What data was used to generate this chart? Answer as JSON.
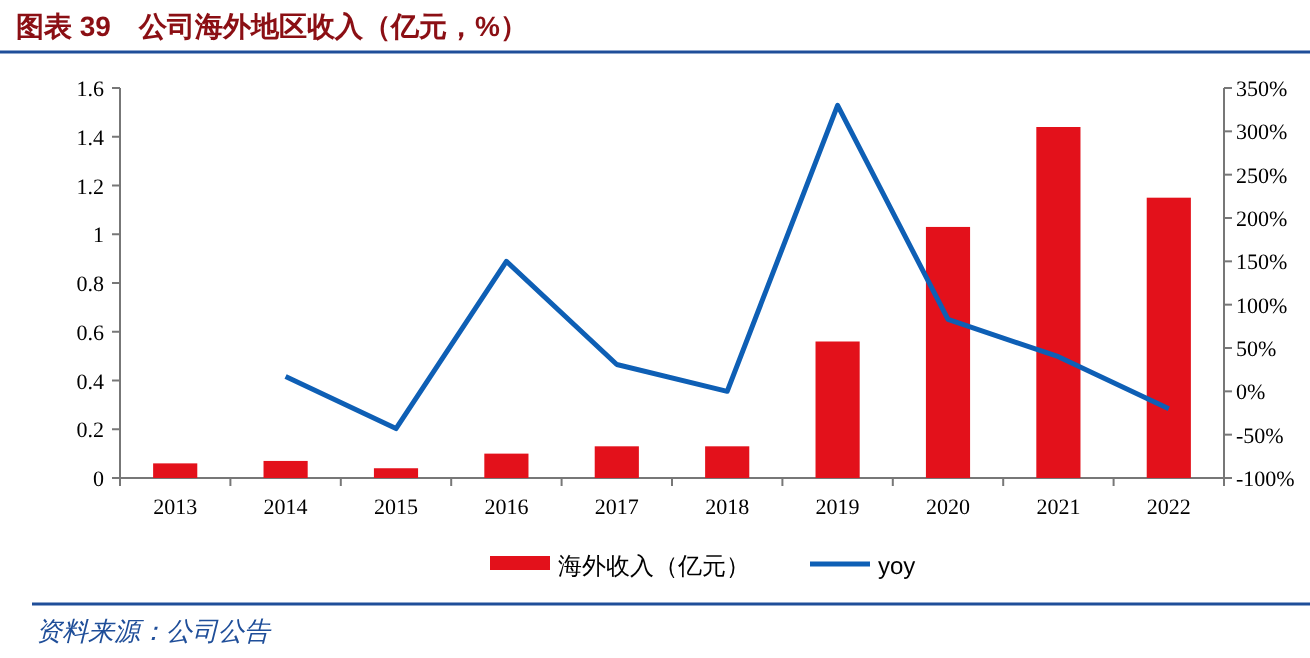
{
  "chart_data": {
    "type": "bar",
    "title": "图表 39　公司海外地区收入（亿元，%）",
    "annotations": [
      "资料来源：公司公告"
    ],
    "categories": [
      "2013",
      "2014",
      "2015",
      "2016",
      "2017",
      "2018",
      "2019",
      "2020",
      "2021",
      "2022"
    ],
    "series": [
      {
        "name": "海外收入（亿元）",
        "color": "#e3111b",
        "values": [
          0.06,
          0.07,
          0.04,
          0.1,
          0.13,
          0.13,
          0.56,
          1.03,
          1.44,
          1.15
        ]
      },
      {
        "name": "yoy",
        "type": "line",
        "axis": "y2",
        "color": "#0e5fb5",
        "values": [
          null,
          17,
          -43,
          150,
          31,
          0,
          330,
          83,
          40,
          -20
        ]
      }
    ],
    "ylim": [
      0,
      1.6
    ],
    "yticks": [
      0,
      0.2,
      0.4,
      0.6,
      0.8,
      1,
      1.2,
      1.4,
      1.6
    ],
    "y2lim": [
      -100,
      350
    ],
    "y2ticks": [
      {
        "value": -100,
        "label": "-100%"
      },
      {
        "value": -50,
        "label": "-50%"
      },
      {
        "value": 0,
        "label": "0%"
      },
      {
        "value": 50,
        "label": "50%"
      },
      {
        "value": 100,
        "label": "100%"
      },
      {
        "value": 150,
        "label": "150%"
      },
      {
        "value": 200,
        "label": "200%"
      },
      {
        "value": 250,
        "label": "250%"
      },
      {
        "value": 300,
        "label": "300%"
      },
      {
        "value": 350,
        "label": "350%"
      }
    ],
    "legend": "bottom",
    "grid": false
  }
}
